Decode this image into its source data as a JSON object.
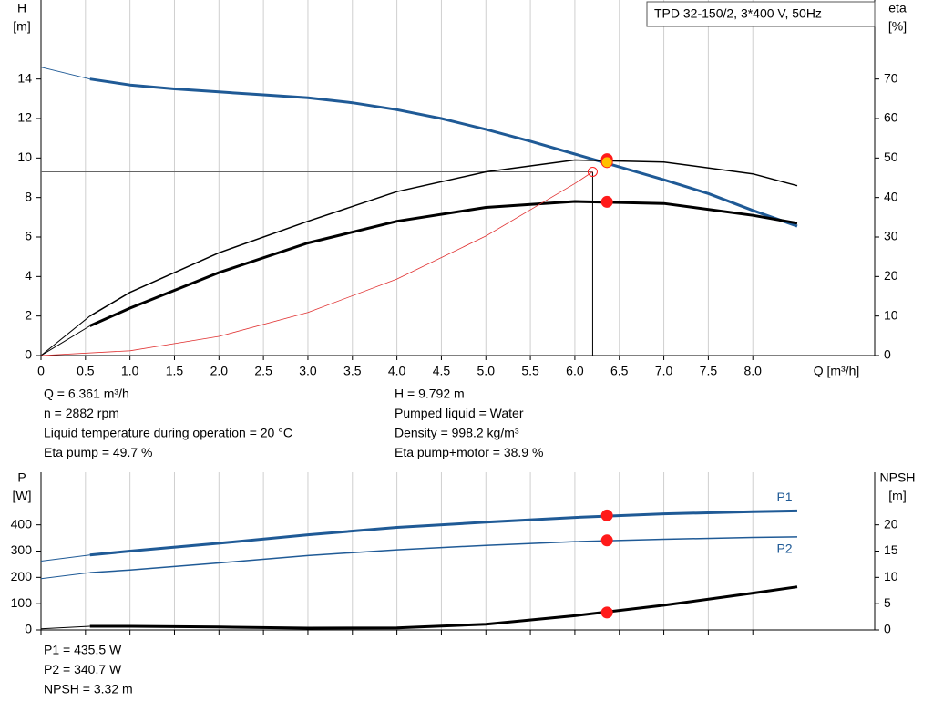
{
  "chart_data": [
    {
      "type": "line",
      "title": "TPD 32-150/2, 3*400 V, 50Hz",
      "ylabel": "H",
      "yunit": "[m]",
      "y2label": "eta",
      "y2unit": "[%]",
      "xlabel": "Q [m³/h]",
      "xlim": [
        0,
        9.37
      ],
      "xticks": [
        0,
        0.5,
        {
          "value": 1,
          "label": "1.0"
        },
        1.5,
        {
          "value": 2,
          "label": "2.0"
        },
        2.5,
        {
          "value": 3,
          "label": "3.0"
        },
        3.5,
        {
          "value": 4,
          "label": "4.0"
        },
        4.5,
        {
          "value": 5,
          "label": "5.0"
        },
        5.5,
        {
          "value": 6,
          "label": "6.0"
        },
        6.5,
        {
          "value": 7,
          "label": "7.0"
        },
        7.5,
        {
          "value": 8,
          "label": "8.0"
        }
      ],
      "ylim": [
        0,
        18
      ],
      "yticks": [
        0,
        2,
        4,
        6,
        8,
        10,
        12,
        14
      ],
      "y2lim": [
        0,
        90
      ],
      "y2ticks": [
        0,
        10,
        20,
        30,
        40,
        50,
        60,
        70
      ],
      "grid": "x",
      "series": [
        {
          "x": [
            0,
            0.55
          ],
          "values": [
            14.6,
            14.0
          ],
          "color": "#1f5a96",
          "width": 1
        },
        {
          "x": [
            0.55,
            1,
            1.5,
            2,
            2.5,
            3,
            3.5,
            4,
            4.5,
            5,
            5.5,
            6,
            6.5,
            7,
            7.5,
            8,
            8.5
          ],
          "values": [
            14.0,
            13.7,
            13.5,
            13.35,
            13.2,
            13.05,
            12.8,
            12.45,
            12.0,
            11.45,
            10.85,
            10.2,
            9.55,
            8.9,
            8.2,
            7.35,
            6.55
          ],
          "color": "#1f5a96",
          "width": 3
        },
        {
          "x": [
            0,
            0.55
          ],
          "values": [
            0,
            10
          ],
          "color": "#000000",
          "width": 1,
          "axis": "y2"
        },
        {
          "x": [
            0.55,
            1,
            2,
            3,
            4,
            5,
            6,
            7,
            8,
            8.5
          ],
          "values": [
            10,
            16,
            26,
            34,
            41.5,
            46.5,
            49.5,
            49,
            46,
            43
          ],
          "color": "#000000",
          "width": 1.5,
          "axis": "y2"
        },
        {
          "x": [
            0,
            0.55
          ],
          "values": [
            0,
            7.5
          ],
          "color": "#000000",
          "width": 1,
          "axis": "y2"
        },
        {
          "x": [
            0.55,
            1,
            2,
            3,
            4,
            5,
            6,
            7,
            8,
            8.5
          ],
          "values": [
            7.5,
            12,
            21,
            28.5,
            34,
            37.5,
            39,
            38.5,
            35.5,
            33.5
          ],
          "color": "#000000",
          "width": 3,
          "axis": "y2"
        },
        {
          "x": [
            0,
            1,
            2,
            3,
            4,
            5,
            6,
            6.2
          ],
          "values": [
            0,
            0.24,
            0.97,
            2.18,
            3.87,
            6.05,
            8.71,
            9.3
          ],
          "color": "#e03030",
          "width": 0.8
        }
      ],
      "refline": {
        "x": 6.2,
        "y": 9.3
      },
      "markers": [
        {
          "x": 6.2,
          "value": 9.3,
          "color": "none"
        },
        {
          "x": 6.361,
          "value": 49.7,
          "axis": "y2",
          "color": "#ff1a1a"
        },
        {
          "x": 6.361,
          "value": 38.9,
          "axis": "y2",
          "color": "#ff1a1a"
        },
        {
          "x": 6.361,
          "value": 9.792,
          "color": "#ffc000"
        }
      ],
      "info_left": [
        "Q = 6.361 m³/h",
        "n = 2882 rpm",
        "Liquid temperature during operation = 20 °C",
        "Eta pump = 49.7 %"
      ],
      "info_right": [
        "H = 9.792 m",
        "Pumped liquid = Water",
        "Density = 998.2 kg/m³",
        "Eta pump+motor = 38.9 %"
      ]
    },
    {
      "type": "line",
      "ylabel": "P",
      "yunit": "[W]",
      "y2label": "NPSH",
      "y2unit": "[m]",
      "xlim": [
        0,
        9.37
      ],
      "xticks": [
        0,
        0.5,
        1,
        1.5,
        2,
        2.5,
        3,
        3.5,
        4,
        4.5,
        5,
        5.5,
        6,
        6.5,
        7,
        7.5,
        8
      ],
      "ylim": [
        0,
        600
      ],
      "yticks": [
        0,
        100,
        200,
        300,
        400
      ],
      "y2lim": [
        0,
        30
      ],
      "y2ticks": [
        0,
        5,
        10,
        15,
        20
      ],
      "grid": "x",
      "series": [
        {
          "x": [
            0,
            0.55
          ],
          "values": [
            262,
            285
          ],
          "color": "#1f5a96",
          "width": 1
        },
        {
          "name": "P1",
          "x": [
            0.55,
            1,
            2,
            3,
            4,
            5,
            6,
            7,
            8,
            8.5
          ],
          "values": [
            285,
            300,
            330,
            362,
            390,
            410,
            428,
            442,
            450,
            453
          ],
          "color": "#1f5a96",
          "width": 3
        },
        {
          "x": [
            0,
            0.55
          ],
          "values": [
            195,
            218
          ],
          "color": "#1f5a96",
          "width": 1
        },
        {
          "name": "P2",
          "x": [
            0.55,
            1,
            2,
            3,
            4,
            5,
            6,
            7,
            8,
            8.5
          ],
          "values": [
            218,
            228,
            255,
            283,
            305,
            322,
            336,
            345,
            352,
            354
          ],
          "color": "#1f5a96",
          "width": 1.5
        },
        {
          "x": [
            0,
            0.55
          ],
          "values": [
            0.2,
            0.7
          ],
          "color": "#000000",
          "width": 1,
          "axis": "y2"
        },
        {
          "x": [
            0.55,
            1,
            2,
            3,
            4,
            5,
            6,
            7,
            8,
            8.5
          ],
          "values": [
            0.7,
            0.7,
            0.55,
            0.35,
            0.4,
            1.1,
            2.7,
            4.7,
            7,
            8.2
          ],
          "color": "#000000",
          "width": 3,
          "axis": "y2"
        }
      ],
      "markers": [
        {
          "x": 6.361,
          "value": 435.5,
          "color": "#ff1a1a"
        },
        {
          "x": 6.361,
          "value": 340.7,
          "color": "#ff1a1a"
        },
        {
          "x": 6.361,
          "value": 3.32,
          "axis": "y2",
          "color": "#ff1a1a"
        }
      ],
      "info_left": [
        "P1 = 435.5 W",
        "P2 = 340.7 W",
        "NPSH = 3.32 m"
      ]
    }
  ]
}
